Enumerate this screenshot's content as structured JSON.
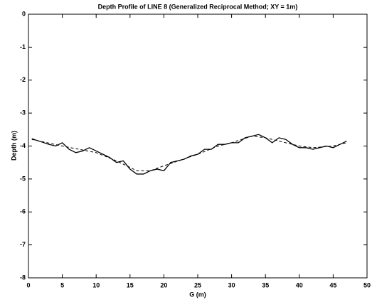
{
  "chart_data": {
    "type": "line",
    "title": "Depth Profile of LINE 8 (Generalized Reciprocal Method; XY = 1m)",
    "xlabel": "G (m)",
    "ylabel": "Depth (m)",
    "xlim": [
      0,
      50
    ],
    "xticks": [
      0,
      5,
      10,
      15,
      20,
      25,
      30,
      35,
      40,
      45,
      50
    ],
    "ylim": [
      -8,
      0
    ],
    "yticks": [
      0,
      -1,
      -2,
      -3,
      -4,
      -5,
      -6,
      -7,
      -8
    ],
    "series": [
      {
        "color": "#000000",
        "style": "solid",
        "x": [
          0.5,
          2,
          3,
          4,
          5,
          6,
          7,
          8,
          9,
          10,
          11,
          12,
          13,
          14,
          15,
          16,
          17,
          18,
          19,
          20,
          21,
          22,
          23,
          24,
          25,
          26,
          27,
          28,
          29,
          30,
          31,
          32,
          33,
          34,
          35,
          36,
          37,
          38,
          39,
          40,
          41,
          42,
          43,
          44,
          45,
          46,
          47
        ],
        "values": [
          -3.78,
          -3.88,
          -3.95,
          -4.0,
          -3.9,
          -4.1,
          -4.2,
          -4.15,
          -4.05,
          -4.15,
          -4.25,
          -4.35,
          -4.5,
          -4.45,
          -4.7,
          -4.85,
          -4.85,
          -4.75,
          -4.7,
          -4.75,
          -4.5,
          -4.45,
          -4.4,
          -4.3,
          -4.25,
          -4.1,
          -4.1,
          -3.95,
          -3.95,
          -3.9,
          -3.9,
          -3.75,
          -3.7,
          -3.65,
          -3.75,
          -3.9,
          -3.75,
          -3.8,
          -3.95,
          -4.05,
          -4.05,
          -4.1,
          -4.05,
          -4.0,
          -4.05,
          -3.95,
          -3.85
        ]
      },
      {
        "color": "#000000",
        "style": "dashed",
        "x": [
          0.5,
          5,
          10,
          13,
          15,
          16,
          18,
          20,
          25,
          28,
          30,
          33,
          35,
          38,
          40,
          42,
          45,
          47
        ],
        "values": [
          -3.8,
          -4.0,
          -4.2,
          -4.45,
          -4.65,
          -4.75,
          -4.75,
          -4.6,
          -4.25,
          -4.0,
          -3.9,
          -3.7,
          -3.75,
          -3.9,
          -4.0,
          -4.05,
          -4.0,
          -3.9
        ]
      }
    ]
  }
}
